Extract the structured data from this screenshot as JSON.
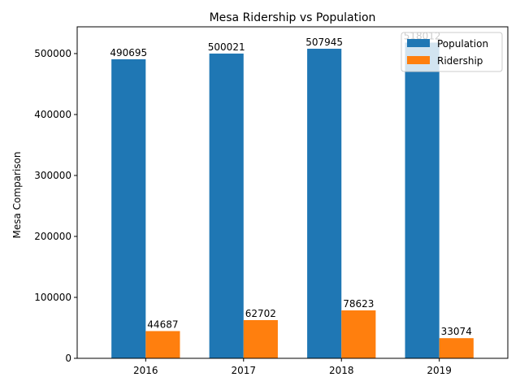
{
  "chart_data": {
    "type": "bar",
    "title": "Mesa Ridership vs Population",
    "xlabel": "",
    "ylabel": "Mesa Comparison",
    "categories": [
      "2016",
      "2017",
      "2018",
      "2019"
    ],
    "series": [
      {
        "name": "Population",
        "values": [
          490695,
          500021,
          507945,
          518012
        ],
        "color": "#1f77b4"
      },
      {
        "name": "Ridership",
        "values": [
          44687,
          62702,
          78623,
          33074
        ],
        "color": "#ff7f0e"
      }
    ],
    "ylim": [
      0,
      543912
    ],
    "yticks": [
      0,
      100000,
      200000,
      300000,
      400000,
      500000
    ],
    "ytick_labels": [
      "0",
      "100000",
      "200000",
      "300000",
      "400000",
      "500000"
    ],
    "data_labels": [
      [
        "490695",
        "500021",
        "507945",
        "518012"
      ],
      [
        "44687",
        "62702",
        "78623",
        "33074"
      ]
    ],
    "grid": false,
    "legend_position": "top-right"
  }
}
